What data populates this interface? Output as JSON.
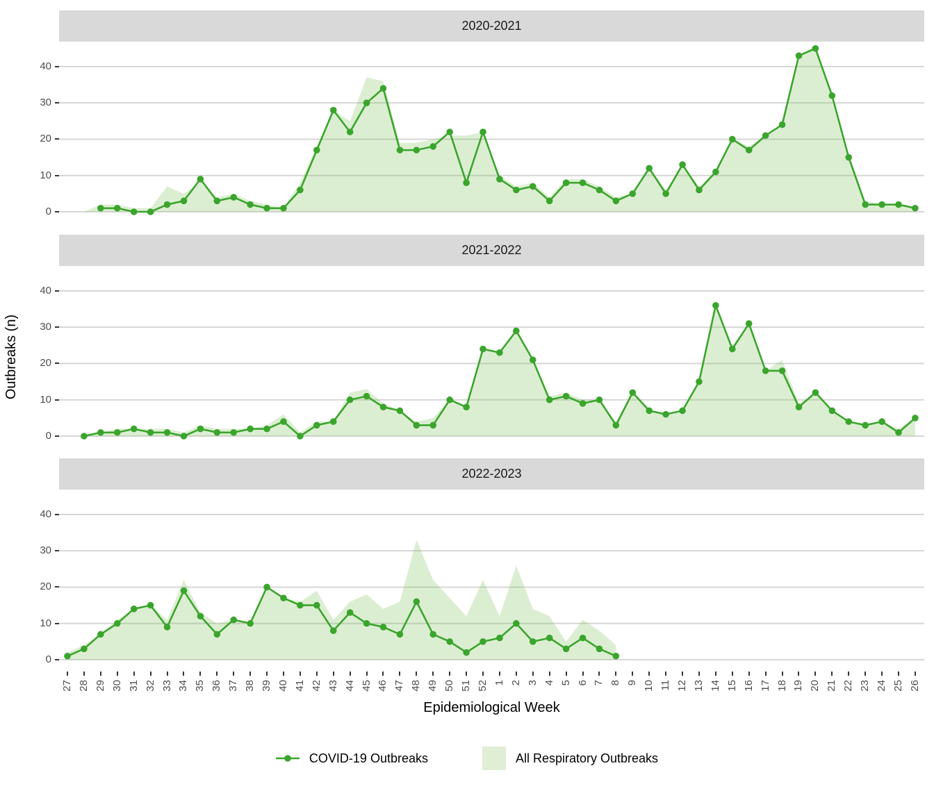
{
  "chart_data": {
    "type": "area",
    "subtype": "faceted line + area chart, 3 stacked facets sharing x axis",
    "title": "",
    "xlabel": "Epidemiological Week",
    "ylabel": "Outbreaks (n)",
    "yticks": [
      0,
      10,
      20,
      30,
      40
    ],
    "ylim": [
      0,
      47
    ],
    "grid": "horizontal major gridlines only",
    "legend_position": "bottom",
    "legend": [
      {
        "label": "COVID-19 Outbreaks",
        "symbol": "line-with-point"
      },
      {
        "label": "All Respiratory Outbreaks",
        "symbol": "filled-square"
      }
    ],
    "categories": [
      "27",
      "28",
      "29",
      "30",
      "31",
      "32",
      "33",
      "34",
      "35",
      "36",
      "37",
      "38",
      "39",
      "40",
      "41",
      "42",
      "43",
      "44",
      "45",
      "46",
      "47",
      "48",
      "49",
      "50",
      "51",
      "52",
      "1",
      "2",
      "3",
      "4",
      "5",
      "6",
      "7",
      "8",
      "9",
      "10",
      "11",
      "12",
      "13",
      "14",
      "15",
      "16",
      "17",
      "18",
      "19",
      "20",
      "21",
      "22",
      "23",
      "24",
      "25",
      "26"
    ],
    "facets": [
      {
        "title": "2020-2021",
        "series": [
          {
            "name": "COVID-19 Outbreaks",
            "type": "line",
            "values": [
              null,
              null,
              1,
              1,
              0,
              0,
              2,
              3,
              9,
              3,
              4,
              2,
              1,
              1,
              6,
              17,
              28,
              22,
              30,
              34,
              17,
              17,
              18,
              22,
              8,
              22,
              9,
              6,
              7,
              3,
              8,
              8,
              6,
              3,
              5,
              12,
              5,
              13,
              6,
              11,
              20,
              17,
              21,
              24,
              43,
              45,
              32,
              15,
              2,
              2,
              2,
              1
            ]
          },
          {
            "name": "All Respiratory Outbreaks",
            "type": "area",
            "values": [
              null,
              0,
              2,
              2,
              1,
              1,
              7,
              5,
              8,
              4,
              5,
              3,
              2,
              1,
              8,
              18,
              28,
              25,
              37,
              36,
              19,
              19,
              20,
              21,
              21,
              22,
              10,
              7,
              8,
              4,
              9,
              9,
              7,
              4,
              5,
              12,
              6,
              13,
              7,
              11,
              20,
              18,
              21,
              24,
              43,
              46,
              32,
              16,
              3,
              2,
              2,
              1
            ]
          }
        ]
      },
      {
        "title": "2021-2022",
        "series": [
          {
            "name": "COVID-19 Outbreaks",
            "type": "line",
            "values": [
              null,
              0,
              1,
              1,
              2,
              1,
              1,
              0,
              2,
              1,
              1,
              2,
              2,
              4,
              0,
              3,
              4,
              10,
              11,
              8,
              7,
              3,
              3,
              10,
              8,
              24,
              23,
              29,
              21,
              10,
              11,
              9,
              10,
              3,
              12,
              7,
              6,
              7,
              15,
              36,
              24,
              31,
              18,
              18,
              8,
              12,
              7,
              4,
              3,
              4,
              1,
              5
            ]
          },
          {
            "name": "All Respiratory Outbreaks",
            "type": "area",
            "values": [
              null,
              0,
              1,
              2,
              2,
              2,
              2,
              1,
              3,
              2,
              2,
              2,
              3,
              6,
              1,
              4,
              4,
              12,
              13,
              9,
              7,
              4,
              5,
              10,
              8,
              24,
              23,
              29,
              21,
              11,
              12,
              10,
              10,
              4,
              12,
              7,
              6,
              7,
              15,
              36,
              25,
              31,
              18,
              21,
              9,
              12,
              7,
              4,
              3,
              4,
              2,
              5
            ]
          }
        ]
      },
      {
        "title": "2022-2023",
        "series": [
          {
            "name": "COVID-19 Outbreaks",
            "type": "line",
            "values": [
              1,
              3,
              7,
              10,
              14,
              15,
              9,
              19,
              12,
              7,
              11,
              10,
              20,
              17,
              15,
              15,
              8,
              13,
              10,
              9,
              7,
              16,
              7,
              5,
              2,
              5,
              6,
              10,
              5,
              6,
              3,
              6,
              3,
              1,
              null,
              null,
              null,
              null,
              null,
              null,
              null,
              null,
              null,
              null,
              null,
              null,
              null,
              null,
              null,
              null,
              null,
              null
            ]
          },
          {
            "name": "All Respiratory Outbreaks",
            "type": "area",
            "values": [
              2,
              4,
              7,
              11,
              14,
              15,
              11,
              22,
              13,
              10,
              11,
              10,
              20,
              17,
              16,
              19,
              11,
              16,
              18,
              14,
              16,
              33,
              22,
              17,
              12,
              22,
              12,
              26,
              14,
              12,
              5,
              11,
              8,
              4,
              null,
              null,
              null,
              null,
              null,
              null,
              null,
              null,
              null,
              null,
              null,
              null,
              null,
              null,
              null,
              null,
              null,
              null
            ]
          }
        ]
      }
    ],
    "colors": {
      "line": "#3aa52c",
      "point": "#3aa52c",
      "area_fill_rgba": "rgba(130,195,92,0.28)",
      "legend_swatch": "#dfeed5",
      "strip_background": "#d9d9d9",
      "gridline": "#d6d6d6",
      "axis_text": "#4d4d4d",
      "tick_mark": "#333333"
    }
  },
  "labels": {
    "ylabel": "Outbreaks (n)",
    "xlabel": "Epidemiological Week",
    "legend_covid": "COVID-19 Outbreaks",
    "legend_resp": "All Respiratory Outbreaks"
  }
}
